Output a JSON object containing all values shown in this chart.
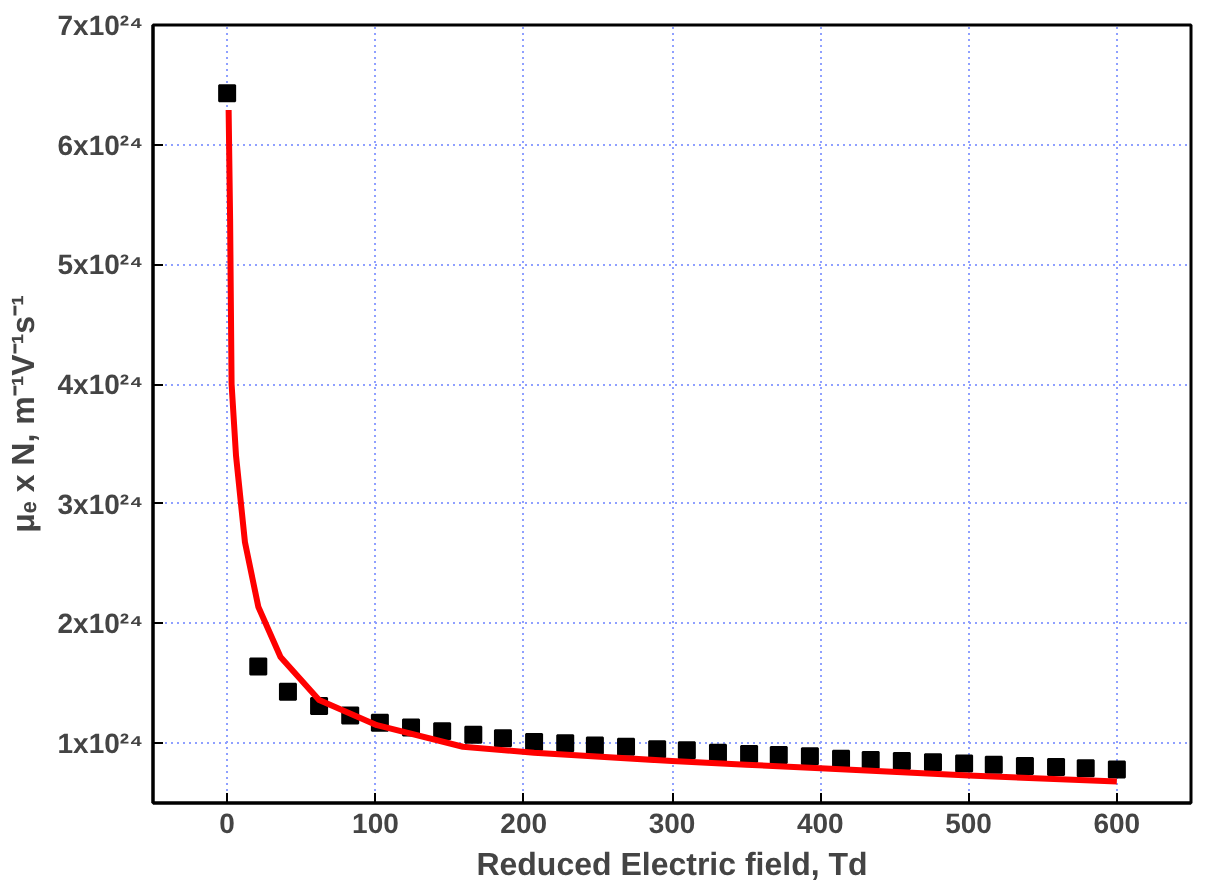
{
  "chart_data": {
    "type": "scatter",
    "xlabel": "Reduced Electric field, Td",
    "ylabel": "μₑ x N, m⁻¹V⁻¹s⁻¹",
    "xlim": [
      -50,
      650
    ],
    "ylim": [
      5e+23,
      7e+24
    ],
    "xticks": [
      0,
      100,
      200,
      300,
      400,
      500,
      600
    ],
    "yticks": [
      {
        "value": 1e+24,
        "label": "1x10²⁴"
      },
      {
        "value": 2e+24,
        "label": "2x10²⁴"
      },
      {
        "value": 3e+24,
        "label": "3x10²⁴"
      },
      {
        "value": 4e+24,
        "label": "4x10²⁴"
      },
      {
        "value": 5e+24,
        "label": "5x10²⁴"
      },
      {
        "value": 6e+24,
        "label": "6x10²⁴"
      },
      {
        "value": 7e+24,
        "label": "7x10²⁴"
      }
    ],
    "grid": true,
    "series": [
      {
        "marker": "square",
        "color": "#000000",
        "x": [
          0,
          21,
          41,
          62,
          83,
          103,
          124,
          145,
          166,
          186,
          207,
          228,
          248,
          269,
          290,
          310,
          331,
          352,
          372,
          393,
          414,
          434,
          455,
          476,
          497,
          517,
          538,
          559,
          579,
          600
        ],
        "values": [
          6.43e+24,
          1.64e+24,
          1.43e+24,
          1.31e+24,
          1.23e+24,
          1.17e+24,
          1.13e+24,
          1.1e+24,
          1.07e+24,
          1.04e+24,
          1.01e+24,
          1e+24,
          9.8e+23,
          9.7e+23,
          9.5e+23,
          9.4e+23,
          9.2e+23,
          9.1e+23,
          9e+23,
          8.9e+23,
          8.7e+23,
          8.6e+23,
          8.5e+23,
          8.4e+23,
          8.3e+23,
          8.2e+23,
          8.1e+23,
          8e+23,
          7.9e+23,
          7.8e+23
        ]
      },
      {
        "type": "line",
        "marker": "none",
        "line_style": "solid",
        "color": "#ff0000",
        "x": [
          1,
          2,
          3,
          6,
          12,
          21,
          36,
          62,
          101,
          159,
          207,
          300,
          350,
          400,
          500,
          600
        ],
        "values": [
          6.29e+24,
          5.38e+24,
          4e+24,
          3.4e+24,
          2.68e+24,
          2.14e+24,
          1.72e+24,
          1.36e+24,
          1.15e+24,
          9.7e+23,
          9.2e+23,
          8.5e+23,
          8.2e+23,
          7.9e+23,
          7.3e+23,
          6.8e+23
        ]
      }
    ]
  }
}
